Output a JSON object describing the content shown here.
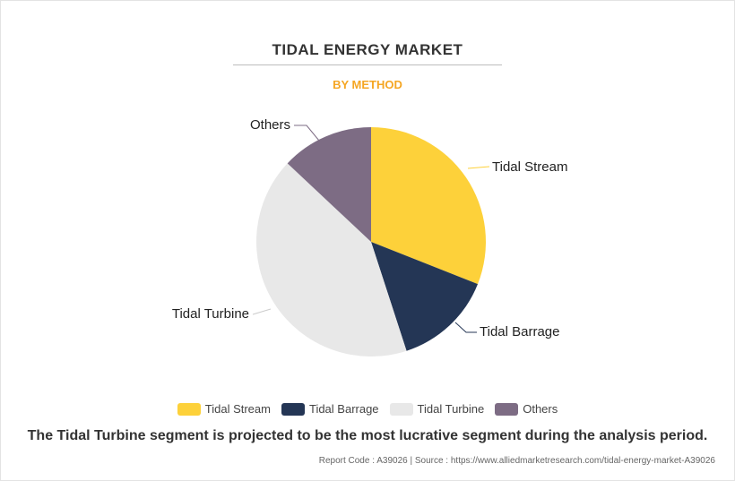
{
  "header": {
    "title": "TIDAL ENERGY MARKET",
    "subtitle": "BY METHOD",
    "subtitle_color": "#f5a623"
  },
  "chart_data": {
    "type": "pie",
    "title": "TIDAL ENERGY MARKET",
    "subtitle": "BY METHOD",
    "categories": [
      "Tidal Stream",
      "Tidal Barrage",
      "Tidal Turbine",
      "Others"
    ],
    "values": [
      31,
      14,
      42,
      13
    ],
    "colors": [
      "#fdd13a",
      "#243655",
      "#e8e8e8",
      "#7d6c84"
    ],
    "legend": "bottom"
  },
  "legend": {
    "items": [
      {
        "label": "Tidal Stream",
        "color": "#fdd13a"
      },
      {
        "label": "Tidal Barrage",
        "color": "#243655"
      },
      {
        "label": "Tidal Turbine",
        "color": "#e8e8e8"
      },
      {
        "label": "Others",
        "color": "#7d6c84"
      }
    ]
  },
  "summary": "The Tidal Turbine segment is projected to be the most lucrative segment during the analysis period.",
  "footer": {
    "text": "Report Code : A39026  |  Source : https://www.alliedmarketresearch.com/tidal-energy-market-A39026"
  }
}
